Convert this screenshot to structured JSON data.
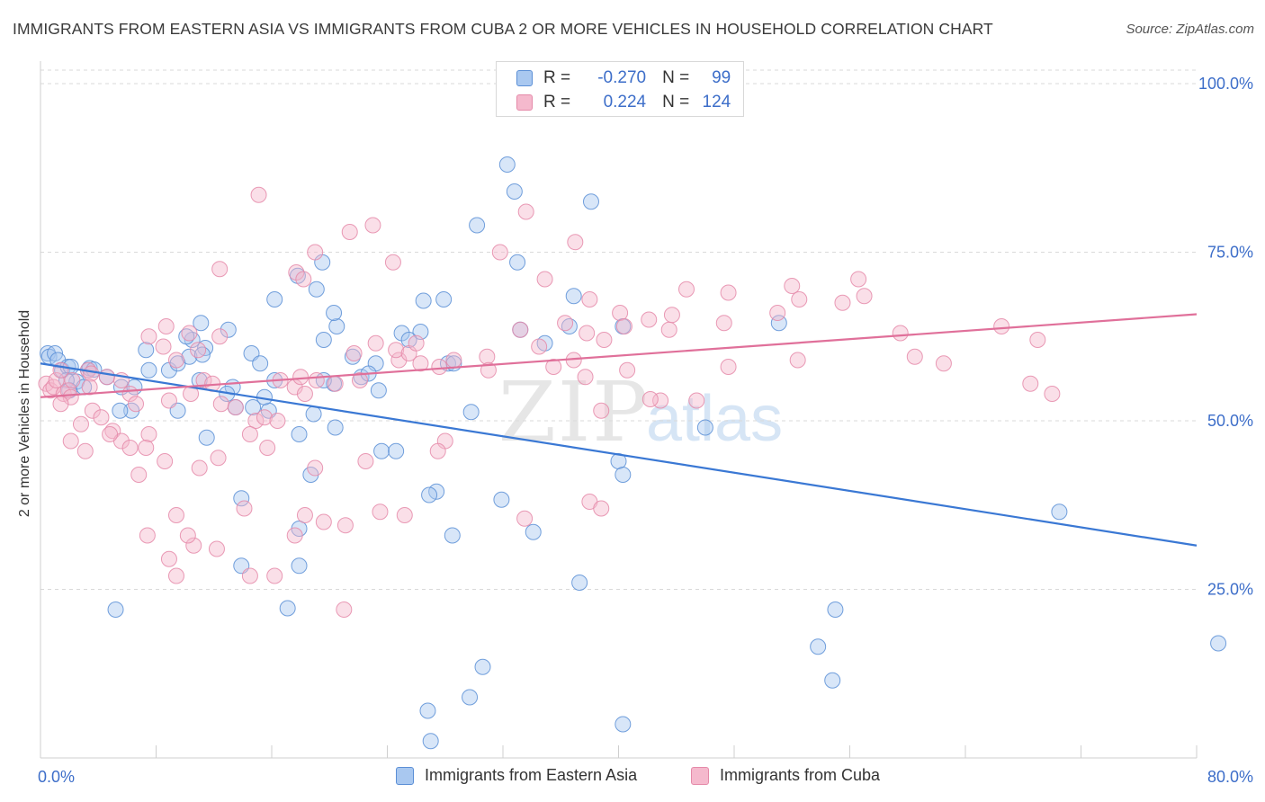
{
  "title": "IMMIGRANTS FROM EASTERN ASIA VS IMMIGRANTS FROM CUBA 2 OR MORE VEHICLES IN HOUSEHOLD CORRELATION CHART",
  "source": "Source: ZipAtlas.com",
  "watermark": {
    "zip": "ZIP",
    "atlas": "atlas"
  },
  "colors": {
    "blue_fill": "#a9c8f0",
    "blue_stroke": "#5b8fd6",
    "blue_line": "#3a78d4",
    "pink_fill": "#f5b9cd",
    "pink_stroke": "#e58aa9",
    "pink_line": "#e0709a",
    "tick_label": "#3d6ec9",
    "grid": "#d9d9d9"
  },
  "stats": [
    {
      "r_label": "R =",
      "r_value": "-0.270",
      "n_label": "N =",
      "n_value": "99"
    },
    {
      "r_label": "R =",
      "r_value": "0.224",
      "n_label": "N =",
      "n_value": "124"
    }
  ],
  "legend": [
    "Immigrants from Eastern Asia",
    "Immigrants from Cuba"
  ],
  "chart_data": {
    "type": "scatter",
    "title": "IMMIGRANTS FROM EASTERN ASIA VS IMMIGRANTS FROM CUBA 2 OR MORE VEHICLES IN HOUSEHOLD CORRELATION CHART",
    "xlabel": "",
    "ylabel": "2 or more Vehicles in Household",
    "xlim": [
      0,
      80
    ],
    "ylim": [
      0,
      102
    ],
    "x_tick_labels": [
      "0.0%",
      "80.0%"
    ],
    "y_ticks": [
      25,
      50,
      75,
      100
    ],
    "y_tick_labels": [
      "25.0%",
      "50.0%",
      "75.0%",
      "100.0%"
    ],
    "grid": true,
    "legend_position": "bottom",
    "series": [
      {
        "name": "Immigrants from Eastern Asia",
        "trend": [
          [
            0,
            58.5
          ],
          [
            80,
            31.5
          ]
        ],
        "points": [
          [
            0.5,
            60
          ],
          [
            0.6,
            59.5
          ],
          [
            1.0,
            60
          ],
          [
            1.2,
            59
          ],
          [
            1.5,
            57.5
          ],
          [
            1.9,
            58
          ],
          [
            2.1,
            58
          ],
          [
            3.3,
            57.5
          ],
          [
            3.4,
            57.8
          ],
          [
            4.6,
            56.5
          ],
          [
            5.6,
            55
          ],
          [
            6.5,
            55
          ],
          [
            2.5,
            55.8
          ],
          [
            1.8,
            56
          ],
          [
            3,
            55
          ],
          [
            3.7,
            57.6
          ],
          [
            2.0,
            54.5
          ],
          [
            7.5,
            57.5
          ],
          [
            8.9,
            57.5
          ],
          [
            9.5,
            58.5
          ],
          [
            7.3,
            60.5
          ],
          [
            10.3,
            59.5
          ],
          [
            11.4,
            60.8
          ],
          [
            11.2,
            59.8
          ],
          [
            14.6,
            60
          ],
          [
            10.5,
            62
          ],
          [
            10.1,
            62.5
          ],
          [
            11.1,
            64.5
          ],
          [
            13.0,
            63.5
          ],
          [
            16.2,
            68
          ],
          [
            17.8,
            71.5
          ],
          [
            19.1,
            69.5
          ],
          [
            19.5,
            73.5
          ],
          [
            20.5,
            64
          ],
          [
            20.3,
            66
          ],
          [
            19.6,
            62
          ],
          [
            21.6,
            59.5
          ],
          [
            22.2,
            56.5
          ],
          [
            23.2,
            58.5
          ],
          [
            20.3,
            55.5
          ],
          [
            26.5,
            67.8
          ],
          [
            27.9,
            68
          ],
          [
            28.2,
            58.5
          ],
          [
            28.6,
            58.5
          ],
          [
            26.3,
            63.2
          ],
          [
            25.0,
            63
          ],
          [
            33.2,
            63.5
          ],
          [
            34.9,
            61.5
          ],
          [
            36.9,
            68.5
          ],
          [
            36.6,
            64
          ],
          [
            38.1,
            82.5
          ],
          [
            30.2,
            79
          ],
          [
            32.8,
            84
          ],
          [
            33.0,
            73.5
          ],
          [
            29.8,
            51.3
          ],
          [
            31.9,
            38.3
          ],
          [
            34.1,
            33.5
          ],
          [
            28.5,
            33
          ],
          [
            27.4,
            39.5
          ],
          [
            26.9,
            39
          ],
          [
            23.6,
            45.5
          ],
          [
            24.6,
            45.5
          ],
          [
            25.5,
            62
          ],
          [
            22.7,
            57
          ],
          [
            23.4,
            54.5
          ],
          [
            19.6,
            56
          ],
          [
            18.9,
            51
          ],
          [
            17.9,
            34
          ],
          [
            17.1,
            22.2
          ],
          [
            17.9,
            48
          ],
          [
            20.4,
            49
          ],
          [
            18.7,
            42
          ],
          [
            14.7,
            52
          ],
          [
            15.8,
            51.5
          ],
          [
            15.5,
            53.5
          ],
          [
            16.2,
            56
          ],
          [
            15.2,
            58.5
          ],
          [
            13.5,
            52
          ],
          [
            13.3,
            55
          ],
          [
            12.9,
            54
          ],
          [
            11.5,
            47.5
          ],
          [
            13.9,
            38.5
          ],
          [
            13.9,
            28.5
          ],
          [
            17.9,
            28.5
          ],
          [
            11.0,
            56
          ],
          [
            9.5,
            51.5
          ],
          [
            6.3,
            51.5
          ],
          [
            5.5,
            51.5
          ],
          [
            5.2,
            22
          ],
          [
            40.0,
            44
          ],
          [
            40.3,
            5
          ],
          [
            27.0,
            2.5
          ],
          [
            26.8,
            7
          ],
          [
            30.6,
            13.5
          ],
          [
            29.7,
            9
          ],
          [
            37.3,
            26
          ],
          [
            40.3,
            42
          ],
          [
            46.0,
            49
          ],
          [
            55,
            22
          ],
          [
            53.8,
            16.5
          ],
          [
            54.8,
            11.5
          ],
          [
            70.5,
            36.5
          ],
          [
            81.5,
            17
          ],
          [
            51.1,
            64.5
          ],
          [
            40.3,
            64
          ],
          [
            32.3,
            88
          ]
        ]
      },
      {
        "name": "Immigrants from Cuba",
        "trend": [
          [
            0,
            53.5
          ],
          [
            80,
            65.8
          ]
        ],
        "points": [
          [
            0.4,
            55.5
          ],
          [
            0.7,
            54.5
          ],
          [
            0.9,
            55
          ],
          [
            1.1,
            56
          ],
          [
            1.6,
            54
          ],
          [
            1.9,
            54.5
          ],
          [
            2.2,
            56
          ],
          [
            3.3,
            57.5
          ],
          [
            3.5,
            57
          ],
          [
            4.6,
            56.5
          ],
          [
            1.4,
            57.5
          ],
          [
            2.1,
            53.5
          ],
          [
            3.4,
            55
          ],
          [
            5.6,
            56
          ],
          [
            6.2,
            54
          ],
          [
            6.6,
            52.5
          ],
          [
            2.8,
            49.5
          ],
          [
            3.6,
            51.5
          ],
          [
            4.2,
            50.5
          ],
          [
            5.0,
            48.5
          ],
          [
            5.6,
            47
          ],
          [
            6.2,
            46
          ],
          [
            4.8,
            48
          ],
          [
            2.1,
            47
          ],
          [
            3.1,
            45.5
          ],
          [
            1.4,
            52.5
          ],
          [
            7.5,
            62.5
          ],
          [
            8.7,
            64
          ],
          [
            10.3,
            63
          ],
          [
            8.5,
            61
          ],
          [
            9.4,
            59
          ],
          [
            10.9,
            60.5
          ],
          [
            12.4,
            62.5
          ],
          [
            8.9,
            53
          ],
          [
            10.4,
            54
          ],
          [
            11.3,
            56
          ],
          [
            11.9,
            55.5
          ],
          [
            12.5,
            52.5
          ],
          [
            13.5,
            52
          ],
          [
            14.9,
            50
          ],
          [
            15.5,
            50.5
          ],
          [
            16.4,
            50
          ],
          [
            16.6,
            56
          ],
          [
            17.6,
            55
          ],
          [
            18.0,
            56.5
          ],
          [
            18.3,
            54
          ],
          [
            19.1,
            56
          ],
          [
            20.4,
            55.5
          ],
          [
            21.7,
            60
          ],
          [
            22.1,
            56
          ],
          [
            23.2,
            61.5
          ],
          [
            24.8,
            59
          ],
          [
            24.6,
            60.5
          ],
          [
            25.5,
            60
          ],
          [
            26.3,
            58.5
          ],
          [
            27.6,
            58
          ],
          [
            28.6,
            59
          ],
          [
            30.9,
            59.5
          ],
          [
            31.0,
            57.5
          ],
          [
            33.2,
            63.5
          ],
          [
            34.5,
            61
          ],
          [
            35.5,
            58
          ],
          [
            36.9,
            59
          ],
          [
            37.7,
            56.5
          ],
          [
            36.3,
            64.5
          ],
          [
            37.8,
            63
          ],
          [
            39.0,
            62
          ],
          [
            38.0,
            68
          ],
          [
            40.1,
            66
          ],
          [
            40.4,
            64
          ],
          [
            42.1,
            65
          ],
          [
            43.5,
            63.5
          ],
          [
            43.7,
            65.7
          ],
          [
            44.7,
            69.5
          ],
          [
            47.3,
            64.5
          ],
          [
            47.6,
            69
          ],
          [
            51.0,
            66
          ],
          [
            52.0,
            70
          ],
          [
            52.5,
            68
          ],
          [
            55.5,
            67.5
          ],
          [
            57.0,
            68.5
          ],
          [
            56.6,
            71
          ],
          [
            59.5,
            63
          ],
          [
            62.5,
            58.5
          ],
          [
            66.5,
            64
          ],
          [
            68.5,
            55.5
          ],
          [
            69.0,
            62
          ],
          [
            70.0,
            54
          ],
          [
            60.5,
            59.5
          ],
          [
            52.4,
            59
          ],
          [
            47.6,
            58
          ],
          [
            45.4,
            53
          ],
          [
            42.9,
            53
          ],
          [
            42.2,
            53.2
          ],
          [
            40.6,
            57.5
          ],
          [
            38.8,
            51.5
          ],
          [
            38.0,
            38
          ],
          [
            33.5,
            35.5
          ],
          [
            28.0,
            47
          ],
          [
            27.5,
            45.5
          ],
          [
            26.0,
            61.5
          ],
          [
            25.2,
            36
          ],
          [
            23.5,
            36.5
          ],
          [
            22.5,
            44
          ],
          [
            21.1,
            34.5
          ],
          [
            19.6,
            35
          ],
          [
            19.0,
            43
          ],
          [
            18.3,
            36
          ],
          [
            17.6,
            33
          ],
          [
            16.2,
            27
          ],
          [
            15.7,
            46
          ],
          [
            14.1,
            37
          ],
          [
            12.2,
            31
          ],
          [
            10.6,
            31.5
          ],
          [
            9.4,
            27
          ],
          [
            8.6,
            44
          ],
          [
            7.5,
            48
          ],
          [
            7.3,
            46
          ],
          [
            6.8,
            42
          ],
          [
            7.4,
            33
          ],
          [
            8.9,
            29.5
          ],
          [
            9.4,
            36
          ],
          [
            10.2,
            33
          ],
          [
            11.0,
            43
          ],
          [
            12.3,
            44.5
          ],
          [
            14.5,
            48
          ],
          [
            14.5,
            27
          ],
          [
            21.0,
            22
          ],
          [
            23.0,
            79
          ],
          [
            12.4,
            72.5
          ],
          [
            15.1,
            83.5
          ],
          [
            19.0,
            75
          ],
          [
            17.7,
            72
          ],
          [
            18.2,
            71
          ],
          [
            24.4,
            73.5
          ],
          [
            21.4,
            78
          ],
          [
            33.6,
            81
          ],
          [
            34.9,
            71
          ],
          [
            31.8,
            75
          ],
          [
            37.0,
            76.5
          ],
          [
            38.8,
            37
          ]
        ]
      }
    ]
  }
}
